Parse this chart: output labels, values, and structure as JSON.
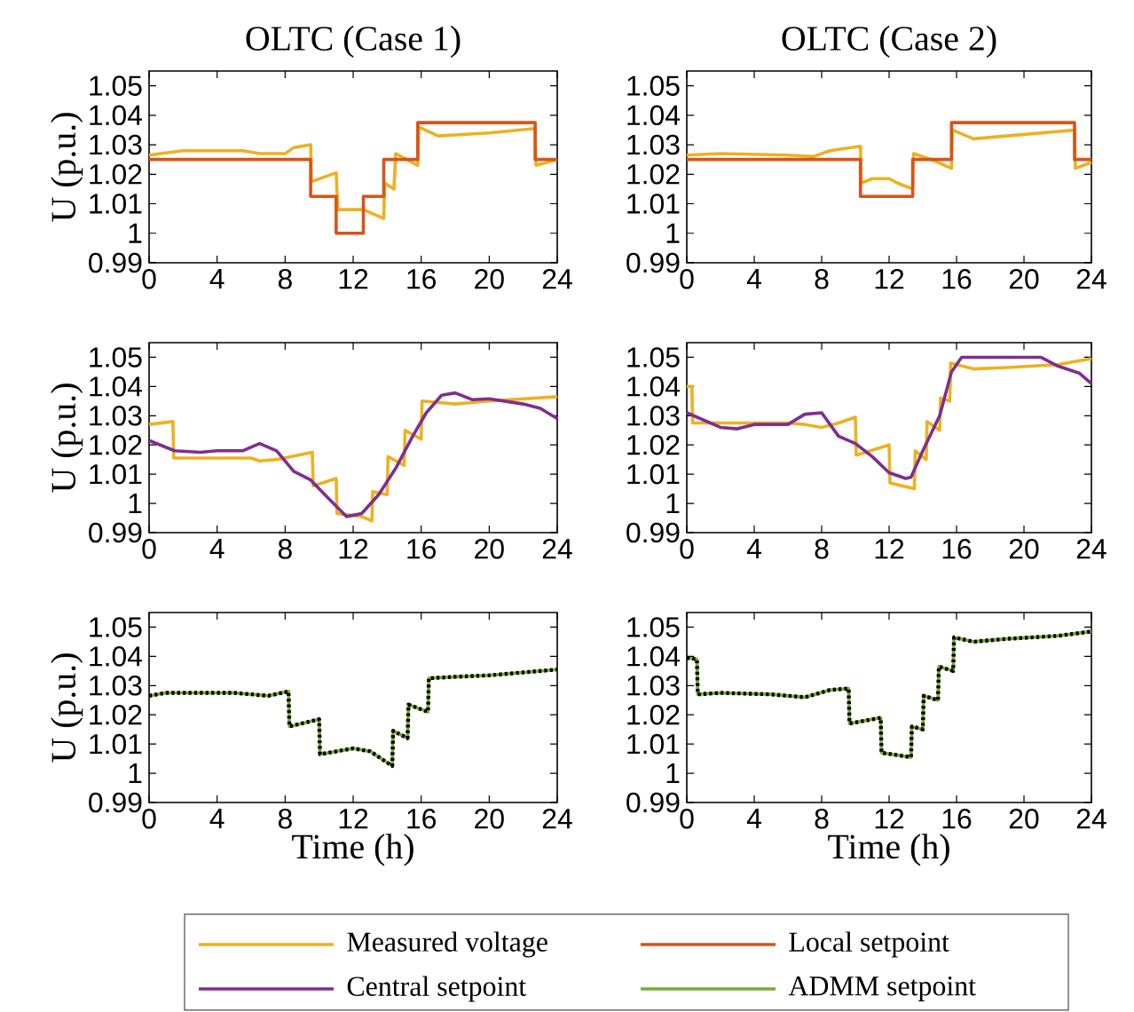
{
  "chart_data": [
    {
      "type": "line",
      "legend": "bottom",
      "title": "OLTC (Case 1)",
      "ylabel": "U (p.u.)",
      "xlim": [
        0,
        24
      ],
      "ylim": [
        0.99,
        1.055
      ],
      "xticks": [
        0,
        4,
        8,
        12,
        16,
        20,
        24
      ],
      "yticks": [
        0.99,
        1,
        1.01,
        1.02,
        1.03,
        1.04,
        1.05
      ],
      "series": [
        {
          "name": "Measured voltage",
          "color": "#edb120",
          "x": [
            0,
            2,
            5.5,
            6.5,
            8,
            8.5,
            9.5,
            9.55,
            11,
            11.1,
            12.6,
            13.8,
            13.85,
            14.4,
            14.5,
            15.8,
            15.85,
            17,
            20,
            22.7,
            22.75,
            24
          ],
          "values": [
            1.0265,
            1.028,
            1.028,
            1.027,
            1.027,
            1.029,
            1.03,
            1.0175,
            1.0205,
            1.008,
            1.008,
            1.005,
            1.017,
            1.015,
            1.027,
            1.023,
            1.036,
            1.033,
            1.034,
            1.0355,
            1.023,
            1.025
          ]
        },
        {
          "name": "Local setpoint",
          "type": "step",
          "color": "#d95319",
          "x": [
            0,
            9.5,
            11,
            12.6,
            13.8,
            15.8,
            22.7,
            24
          ],
          "values": [
            1.025,
            1.0125,
            1.0,
            1.0125,
            1.025,
            1.0375,
            1.025,
            1.025
          ]
        }
      ]
    },
    {
      "type": "line",
      "legend": "bottom",
      "title": "OLTC (Case 2)",
      "xlim": [
        0,
        24
      ],
      "ylim": [
        0.99,
        1.055
      ],
      "xticks": [
        0,
        4,
        8,
        12,
        16,
        20,
        24
      ],
      "yticks": [
        0.99,
        1,
        1.01,
        1.02,
        1.03,
        1.04,
        1.05
      ],
      "series": [
        {
          "name": "Measured voltage",
          "color": "#edb120",
          "x": [
            0,
            2,
            6,
            7.5,
            8.5,
            10.3,
            10.35,
            11,
            12,
            12.5,
            13.4,
            13.45,
            14.5,
            15.7,
            15.75,
            17,
            19,
            23,
            23.05,
            24
          ],
          "values": [
            1.0265,
            1.027,
            1.0265,
            1.026,
            1.028,
            1.0295,
            1.017,
            1.0185,
            1.0185,
            1.017,
            1.015,
            1.027,
            1.025,
            1.022,
            1.035,
            1.032,
            1.033,
            1.035,
            1.022,
            1.024
          ]
        },
        {
          "name": "Local setpoint",
          "type": "step",
          "color": "#d95319",
          "x": [
            0,
            10.3,
            13.4,
            15.7,
            23,
            24
          ],
          "values": [
            1.025,
            1.0125,
            1.025,
            1.0375,
            1.025,
            1.025
          ]
        }
      ]
    },
    {
      "type": "line",
      "legend": "bottom",
      "ylabel": "U (p.u.)",
      "xlim": [
        0,
        24
      ],
      "ylim": [
        0.99,
        1.055
      ],
      "xticks": [
        0,
        4,
        8,
        12,
        16,
        20,
        24
      ],
      "yticks": [
        0.99,
        1,
        1.01,
        1.02,
        1.03,
        1.04,
        1.05
      ],
      "series": [
        {
          "name": "Measured voltage",
          "color": "#edb120",
          "x": [
            0,
            1.4,
            1.45,
            6,
            6.5,
            7.5,
            9.6,
            9.65,
            11,
            11.05,
            12.5,
            13.1,
            13.15,
            14,
            14.05,
            15,
            15.05,
            16,
            16.05,
            18,
            20,
            24
          ],
          "values": [
            1.027,
            1.028,
            1.0155,
            1.0155,
            1.0145,
            1.015,
            1.0175,
            1.006,
            1.0085,
            0.9965,
            0.9955,
            0.994,
            1.004,
            1.003,
            1.016,
            1.013,
            1.025,
            1.022,
            1.035,
            1.034,
            1.035,
            1.0365
          ]
        },
        {
          "name": "Central setpoint",
          "color": "#7e2f8e",
          "x": [
            0,
            1.5,
            3,
            4,
            5.5,
            6.5,
            7.5,
            8.5,
            9.5,
            10.5,
            11.6,
            12.5,
            13.5,
            14.5,
            15.5,
            16.3,
            17.2,
            18,
            19,
            20,
            22,
            23,
            24
          ],
          "values": [
            1.0215,
            1.018,
            1.0175,
            1.018,
            1.018,
            1.0205,
            1.018,
            1.011,
            1.008,
            1.002,
            0.9955,
            0.9965,
            1.003,
            1.012,
            1.023,
            1.031,
            1.037,
            1.0378,
            1.0355,
            1.0358,
            1.034,
            1.0325,
            1.029
          ]
        }
      ]
    },
    {
      "type": "line",
      "legend": "bottom",
      "xlim": [
        0,
        24
      ],
      "ylim": [
        0.99,
        1.055
      ],
      "xticks": [
        0,
        4,
        8,
        12,
        16,
        20,
        24
      ],
      "yticks": [
        0.99,
        1,
        1.01,
        1.02,
        1.03,
        1.04,
        1.05
      ],
      "series": [
        {
          "name": "Measured voltage",
          "color": "#edb120",
          "x": [
            0,
            0.3,
            0.35,
            6,
            7,
            8,
            9,
            10,
            10.05,
            12,
            12.05,
            13.5,
            13.55,
            14.2,
            14.25,
            15,
            15.05,
            15.6,
            15.65,
            17,
            19,
            22,
            24
          ],
          "values": [
            1.04,
            1.04,
            1.0275,
            1.0275,
            1.027,
            1.026,
            1.0275,
            1.0295,
            1.0165,
            1.02,
            1.007,
            1.005,
            1.018,
            1.015,
            1.028,
            1.025,
            1.036,
            1.035,
            1.048,
            1.046,
            1.0465,
            1.0475,
            1.0495
          ]
        },
        {
          "name": "Central setpoint",
          "color": "#7e2f8e",
          "x": [
            0,
            1,
            2,
            3,
            4,
            6,
            7,
            8,
            9,
            10,
            11,
            12,
            13,
            13.3,
            14,
            15,
            15.7,
            16.3,
            21,
            22,
            23.3,
            24
          ],
          "values": [
            1.031,
            1.0285,
            1.026,
            1.0255,
            1.027,
            1.027,
            1.0305,
            1.031,
            1.023,
            1.0205,
            1.016,
            1.0105,
            1.0085,
            1.009,
            1.018,
            1.03,
            1.045,
            1.05,
            1.05,
            1.047,
            1.0445,
            1.041
          ]
        }
      ]
    },
    {
      "type": "line",
      "legend": "bottom",
      "xlabel": "Time (h)",
      "ylabel": "U (p.u.)",
      "xlim": [
        0,
        24
      ],
      "ylim": [
        0.99,
        1.055
      ],
      "xticks": [
        0,
        4,
        8,
        12,
        16,
        20,
        24
      ],
      "yticks": [
        0.99,
        1,
        1.01,
        1.02,
        1.03,
        1.04,
        1.05
      ],
      "series": [
        {
          "name": "ADMM setpoint",
          "color": "#77ac30",
          "x": [
            0,
            1,
            5,
            7,
            8.2,
            8.25,
            10,
            10.05,
            12,
            13,
            14.3,
            14.35,
            15.2,
            15.25,
            16.4,
            16.45,
            18,
            20,
            22,
            24
          ],
          "values": [
            1.0265,
            1.0275,
            1.0275,
            1.0265,
            1.028,
            1.016,
            1.0185,
            1.0065,
            1.0085,
            1.0075,
            1.0025,
            1.0145,
            1.012,
            1.0235,
            1.021,
            1.0325,
            1.033,
            1.0335,
            1.0345,
            1.0355
          ]
        },
        {
          "color": "#000000",
          "line_style": "dotted",
          "x": [
            0,
            1,
            5,
            7,
            8.2,
            8.25,
            10,
            10.05,
            12,
            13,
            14.3,
            14.35,
            15.2,
            15.25,
            16.4,
            16.45,
            18,
            20,
            22,
            24
          ],
          "values": [
            1.0265,
            1.0275,
            1.0275,
            1.0265,
            1.028,
            1.016,
            1.0185,
            1.0065,
            1.0085,
            1.0075,
            1.0025,
            1.0145,
            1.012,
            1.0235,
            1.021,
            1.0325,
            1.033,
            1.0335,
            1.0345,
            1.0355
          ]
        }
      ]
    },
    {
      "type": "line",
      "xlabel": "Time (h)",
      "legend": "bottom",
      "xlim": [
        0,
        24
      ],
      "ylim": [
        0.99,
        1.055
      ],
      "xticks": [
        0,
        4,
        8,
        12,
        16,
        20,
        24
      ],
      "yticks": [
        0.99,
        1,
        1.01,
        1.02,
        1.03,
        1.04,
        1.05
      ],
      "series": [
        {
          "name": "ADMM setpoint",
          "color": "#77ac30",
          "x": [
            0,
            0.6,
            0.65,
            2,
            5,
            7,
            8.5,
            9.6,
            9.65,
            11.5,
            11.55,
            13.3,
            13.35,
            14,
            14.05,
            14.9,
            14.95,
            15.8,
            15.85,
            17,
            19,
            22,
            24
          ],
          "values": [
            1.0395,
            1.039,
            1.027,
            1.0275,
            1.027,
            1.026,
            1.0285,
            1.029,
            1.017,
            1.019,
            1.007,
            1.0055,
            1.016,
            1.015,
            1.0265,
            1.025,
            1.0365,
            1.035,
            1.0465,
            1.045,
            1.046,
            1.047,
            1.0485
          ]
        },
        {
          "color": "#000000",
          "line_style": "dotted",
          "x": [
            0,
            0.6,
            0.65,
            2,
            5,
            7,
            8.5,
            9.6,
            9.65,
            11.5,
            11.55,
            13.3,
            13.35,
            14,
            14.05,
            14.9,
            14.95,
            15.8,
            15.85,
            17,
            19,
            22,
            24
          ],
          "values": [
            1.0395,
            1.039,
            1.027,
            1.0275,
            1.027,
            1.026,
            1.0285,
            1.029,
            1.017,
            1.019,
            1.007,
            1.0055,
            1.016,
            1.015,
            1.0265,
            1.025,
            1.0365,
            1.035,
            1.0465,
            1.045,
            1.046,
            1.047,
            1.0485
          ]
        }
      ]
    }
  ]
}
